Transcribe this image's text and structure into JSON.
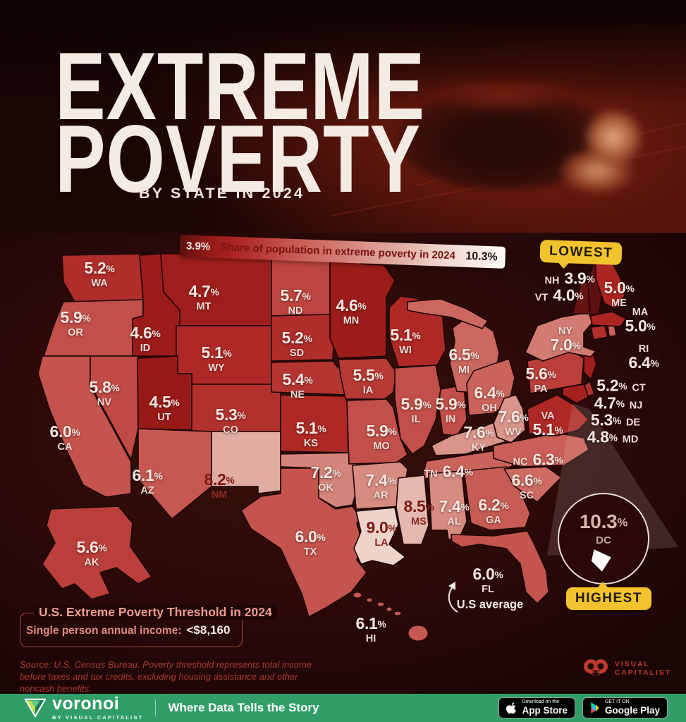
{
  "page": {
    "title_line1": "EXTREME",
    "title_line2": "POVERTY",
    "subtitle": "BY STATE IN 2024"
  },
  "legend": {
    "min_label": "3.9%",
    "max_label": "10.3%",
    "caption": "Share of population in extreme poverty in 2024"
  },
  "callouts": {
    "lowest": "LOWEST",
    "highest": "HIGHEST",
    "us_average_label": "U.S average"
  },
  "threshold_box": {
    "title": "U.S. Extreme Poverty Threshold in 2024",
    "label": "Single person annual income:",
    "value": "<$8,160"
  },
  "source": {
    "text": "Source: U.S. Census Bureau. Poverty threshold represents total income before taxes and tax credits, excluding housing assistance and other noncash benefits."
  },
  "vc_logo": {
    "line1": "VISUAL",
    "line2": "CAPITALIST"
  },
  "footer": {
    "brand": "voronoi",
    "brand_sub": "BY VISUAL CAPITALIST",
    "tagline": "Where Data Tells the Story",
    "appstore_top": "Download on the",
    "appstore_bottom": "App Store",
    "gplay_top": "GET IT ON",
    "gplay_bottom": "Google Play"
  },
  "chart_data": {
    "type": "choropleth-map",
    "title": "Extreme Poverty by State in 2024",
    "unit": "percent share of population in extreme poverty",
    "range": [
      3.9,
      10.3
    ],
    "lowest": {
      "state": "NH",
      "value": 3.9
    },
    "highest": {
      "state": "DC",
      "value": 10.3
    },
    "us_average": 6.0,
    "color_scale": [
      {
        "v": 3.9,
        "c": "#5e0f10"
      },
      {
        "v": 4.5,
        "c": "#971a17"
      },
      {
        "v": 5.0,
        "c": "#ac2522"
      },
      {
        "v": 5.4,
        "c": "#b43530"
      },
      {
        "v": 5.8,
        "c": "#c04a44"
      },
      {
        "v": 6.0,
        "c": "#c4544d"
      },
      {
        "v": 6.5,
        "c": "#cc675f"
      },
      {
        "v": 7.0,
        "c": "#d17b72"
      },
      {
        "v": 7.4,
        "c": "#d78c82"
      },
      {
        "v": 7.6,
        "c": "#da958b"
      },
      {
        "v": 8.2,
        "c": "#e1ada3"
      },
      {
        "v": 8.5,
        "c": "#e5b9af"
      },
      {
        "v": 9.0,
        "c": "#efd4cb"
      },
      {
        "v": 10.3,
        "c": "#fdfaf6"
      }
    ],
    "states": [
      {
        "abbr": "WA",
        "value": 5.2
      },
      {
        "abbr": "OR",
        "value": 5.9
      },
      {
        "abbr": "CA",
        "value": 6.0
      },
      {
        "abbr": "NV",
        "value": 5.8
      },
      {
        "abbr": "ID",
        "value": 4.6
      },
      {
        "abbr": "MT",
        "value": 4.7
      },
      {
        "abbr": "WY",
        "value": 5.1
      },
      {
        "abbr": "UT",
        "value": 4.5
      },
      {
        "abbr": "CO",
        "value": 5.3
      },
      {
        "abbr": "AZ",
        "value": 6.1
      },
      {
        "abbr": "NM",
        "value": 8.2
      },
      {
        "abbr": "AK",
        "value": 5.6
      },
      {
        "abbr": "HI",
        "value": 6.1
      },
      {
        "abbr": "ND",
        "value": 5.7
      },
      {
        "abbr": "SD",
        "value": 5.2
      },
      {
        "abbr": "NE",
        "value": 5.4
      },
      {
        "abbr": "KS",
        "value": 5.1
      },
      {
        "abbr": "OK",
        "value": 7.2
      },
      {
        "abbr": "TX",
        "value": 6.0
      },
      {
        "abbr": "MN",
        "value": 4.6
      },
      {
        "abbr": "IA",
        "value": 5.5
      },
      {
        "abbr": "MO",
        "value": 5.9
      },
      {
        "abbr": "AR",
        "value": 7.4
      },
      {
        "abbr": "LA",
        "value": 9.0
      },
      {
        "abbr": "WI",
        "value": 5.1
      },
      {
        "abbr": "IL",
        "value": 5.9
      },
      {
        "abbr": "IN",
        "value": 5.9
      },
      {
        "abbr": "MI",
        "value": 6.5
      },
      {
        "abbr": "OH",
        "value": 6.4
      },
      {
        "abbr": "KY",
        "value": 7.6
      },
      {
        "abbr": "TN",
        "value": 6.4
      },
      {
        "abbr": "MS",
        "value": 8.5
      },
      {
        "abbr": "AL",
        "value": 7.4
      },
      {
        "abbr": "GA",
        "value": 6.2
      },
      {
        "abbr": "FL",
        "value": 6.0
      },
      {
        "abbr": "SC",
        "value": 6.6
      },
      {
        "abbr": "NC",
        "value": 6.3
      },
      {
        "abbr": "VA",
        "value": 5.1
      },
      {
        "abbr": "WV",
        "value": 7.6
      },
      {
        "abbr": "MD",
        "value": 4.8
      },
      {
        "abbr": "DE",
        "value": 5.3
      },
      {
        "abbr": "NJ",
        "value": 4.7
      },
      {
        "abbr": "PA",
        "value": 5.6
      },
      {
        "abbr": "NY",
        "value": 7.0
      },
      {
        "abbr": "CT",
        "value": 5.2
      },
      {
        "abbr": "RI",
        "value": 6.4
      },
      {
        "abbr": "MA",
        "value": 5.0
      },
      {
        "abbr": "VT",
        "value": 4.0
      },
      {
        "abbr": "NH",
        "value": 3.9
      },
      {
        "abbr": "ME",
        "value": 5.0
      },
      {
        "abbr": "DC",
        "value": 10.3
      }
    ]
  }
}
